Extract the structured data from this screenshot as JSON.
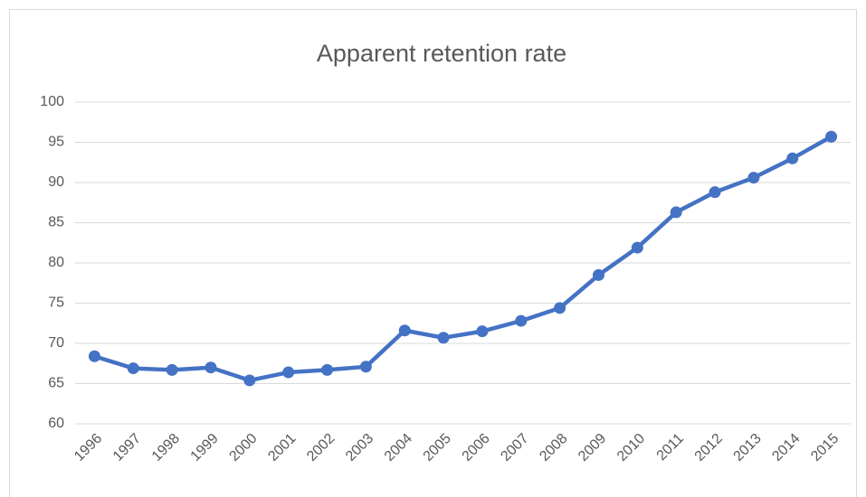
{
  "chart_data": {
    "type": "line",
    "title": "Apparent retention rate",
    "categories": [
      "1996",
      "1997",
      "1998",
      "1999",
      "2000",
      "2001",
      "2002",
      "2003",
      "2004",
      "2005",
      "2006",
      "2007",
      "2008",
      "2009",
      "2010",
      "2011",
      "2012",
      "2013",
      "2014",
      "2015"
    ],
    "series": [
      {
        "name": "Apparent retention rate",
        "color": "#4472c4",
        "values": [
          68.4,
          66.9,
          66.7,
          67.0,
          65.4,
          66.4,
          66.7,
          67.1,
          71.6,
          70.7,
          71.5,
          72.8,
          74.4,
          78.5,
          81.9,
          86.3,
          88.8,
          90.6,
          93.0,
          95.7
        ]
      }
    ],
    "ylim": [
      60,
      100
    ],
    "yticks": [
      60,
      65,
      70,
      75,
      80,
      85,
      90,
      95,
      100
    ],
    "grid": true
  }
}
